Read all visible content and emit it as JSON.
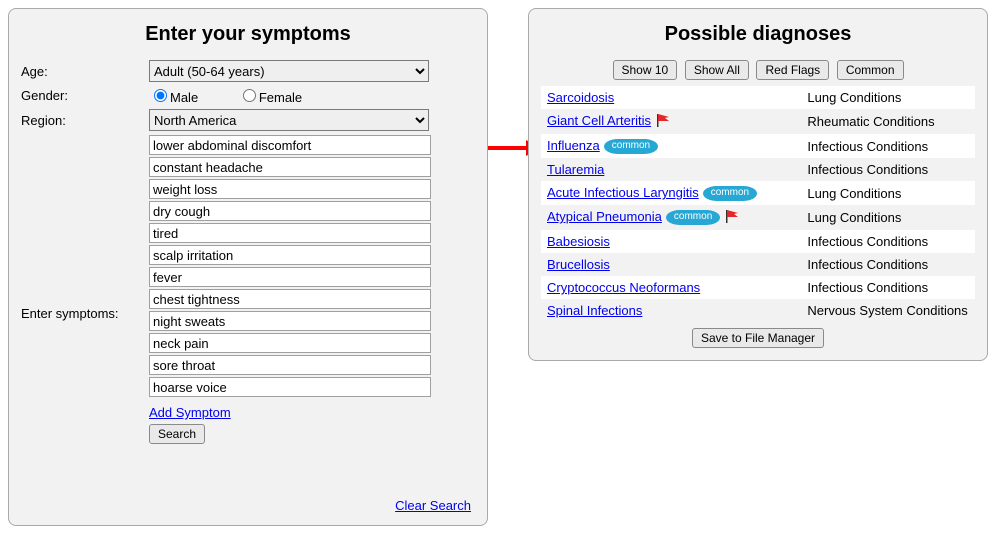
{
  "colors": {
    "panel_bg": "#f2f2f2",
    "panel_border": "#a9a9a9",
    "link": "#0000ee",
    "arrow": "#ff0000",
    "common_badge_bg": "#26a7d4",
    "common_badge_text": "#ffffff",
    "flag": "#e8252a"
  },
  "left": {
    "title": "Enter your symptoms",
    "labels": {
      "age": "Age:",
      "gender": "Gender:",
      "region": "Region:",
      "symptoms": "Enter symptoms:"
    },
    "age": {
      "selected": "Adult (50-64 years)"
    },
    "gender": {
      "male_label": "Male",
      "female_label": "Female",
      "selected": "male"
    },
    "region": {
      "selected": "North America"
    },
    "symptoms": [
      "lower abdominal discomfort",
      "constant headache",
      "weight loss",
      "dry cough",
      "tired",
      "scalp irritation",
      "fever",
      "chest tightness",
      "night sweats",
      "neck pain",
      "sore throat",
      "hoarse voice"
    ],
    "links": {
      "add_symptom": "Add Symptom",
      "clear": "Clear Search"
    },
    "buttons": {
      "search": "Search"
    }
  },
  "right": {
    "title": "Possible diagnoses",
    "filters": {
      "show10": "Show 10",
      "show_all": "Show All",
      "red_flags": "Red Flags",
      "common": "Common"
    },
    "common_badge_text": "common",
    "rows": [
      {
        "name": "Sarcoidosis",
        "category": "Lung Conditions",
        "flag": false,
        "common": false
      },
      {
        "name": "Giant Cell Arteritis",
        "category": "Rheumatic Conditions",
        "flag": true,
        "common": false
      },
      {
        "name": "Influenza",
        "category": "Infectious Conditions",
        "flag": false,
        "common": true
      },
      {
        "name": "Tularemia",
        "category": "Infectious Conditions",
        "flag": false,
        "common": false
      },
      {
        "name": "Acute Infectious Laryngitis",
        "category": "Lung Conditions",
        "flag": false,
        "common": true
      },
      {
        "name": "Atypical Pneumonia",
        "category": "Lung Conditions",
        "flag": true,
        "common": true
      },
      {
        "name": "Babesiosis",
        "category": "Infectious Conditions",
        "flag": false,
        "common": false
      },
      {
        "name": "Brucellosis",
        "category": "Infectious Conditions",
        "flag": false,
        "common": false
      },
      {
        "name": "Cryptococcus Neoformans",
        "category": "Infectious Conditions",
        "flag": false,
        "common": false
      },
      {
        "name": "Spinal Infections",
        "category": "Nervous System Conditions",
        "flag": false,
        "common": false
      }
    ],
    "buttons": {
      "save": "Save to File Manager"
    }
  }
}
